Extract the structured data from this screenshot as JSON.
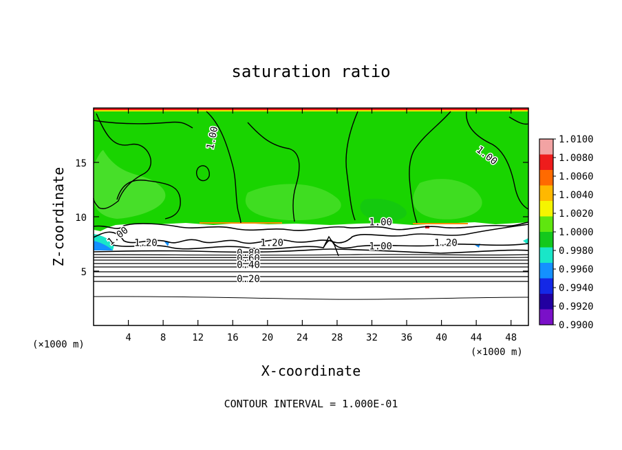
{
  "chart_data": {
    "type": "heatmap",
    "title": "saturation ratio",
    "xlabel": "X-coordinate",
    "ylabel": "Z-coordinate",
    "x_units": "(×1000 m)",
    "z_units": "(×1000 m)",
    "xlim": [
      0,
      50
    ],
    "ylim": [
      0,
      20
    ],
    "x_ticks": [
      4,
      8,
      12,
      16,
      20,
      24,
      28,
      32,
      36,
      40,
      44,
      48
    ],
    "y_ticks": [
      5,
      10,
      15
    ],
    "colorbar": {
      "levels": [
        "1.0100",
        "1.0080",
        "1.0060",
        "1.0040",
        "1.0020",
        "1.0000",
        "0.9980",
        "0.9960",
        "0.9940",
        "0.9920",
        "0.9900"
      ],
      "colors": [
        "#f2a3a3",
        "#ee1c1c",
        "#ff6a00",
        "#ffb800",
        "#f5f500",
        "#5fe60f",
        "#13c81c",
        "#19e6c8",
        "#1490ff",
        "#1428e6",
        "#2200a0",
        "#7a10c8"
      ]
    },
    "contour_labels": [
      {
        "text": "1.00",
        "x": 14,
        "z": 17.2,
        "angle": -78
      },
      {
        "text": "1.00",
        "x": 45,
        "z": 15.4,
        "angle": 38
      },
      {
        "text": "1.00",
        "x": 33,
        "z": 9.2,
        "angle": 0
      },
      {
        "text": "1.00",
        "x": 33,
        "z": 7.0,
        "angle": 0
      },
      {
        "text": "1.00",
        "x": 3,
        "z": 8.0,
        "angle": -38
      },
      {
        "text": "1.20",
        "x": 6,
        "z": 7.3,
        "angle": 0
      },
      {
        "text": "1.20",
        "x": 20.5,
        "z": 7.3,
        "angle": 0
      },
      {
        "text": "1.20",
        "x": 40.5,
        "z": 7.3,
        "angle": 0
      },
      {
        "text": "0.80",
        "x": 17.8,
        "z": 6.4,
        "angle": 0
      },
      {
        "text": "0.60",
        "x": 17.8,
        "z": 5.9,
        "angle": 0
      },
      {
        "text": "0.40",
        "x": 17.8,
        "z": 5.3,
        "angle": 0
      },
      {
        "text": "0.20",
        "x": 17.8,
        "z": 4.0,
        "angle": 0
      }
    ],
    "contour_interval_text": "CONTOUR INTERVAL = 1.000E-01"
  }
}
